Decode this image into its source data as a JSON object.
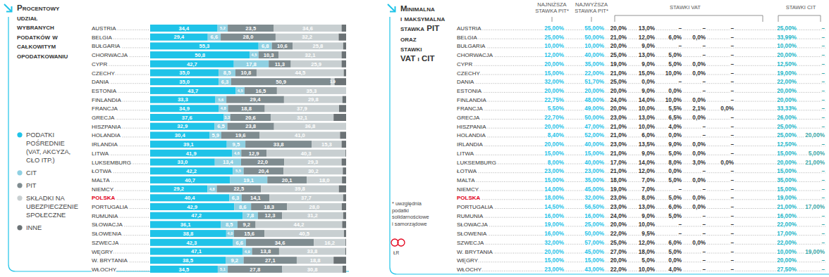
{
  "chart_data": {
    "type": "bar",
    "orientation": "horizontal",
    "stacked": true,
    "data_labels": true,
    "tick_labels": "y",
    "legend": "left",
    "grid": false,
    "title": "Procentowy udział wybranych podatków w całkowitym opodatkowaniu",
    "xlim": [
      0,
      100
    ],
    "categories": [
      "AUSTRIA",
      "BELGIA",
      "BUŁGARIA",
      "CHORWACJA",
      "CYPR",
      "CZECHY",
      "DANIA",
      "ESTONIA",
      "FINLANDIA",
      "FRANCJA",
      "GRECJA",
      "HISZPANIA",
      "HOLANDIA",
      "IRLANDIA",
      "LITWA",
      "LUKSEMBURG",
      "ŁOTWA",
      "MALTA",
      "NIEMCY",
      "POLSKA",
      "PORTUGALIA",
      "RUMUNIA",
      "SŁOWACJA",
      "SŁOWENIA",
      "SZWECJA",
      "WĘGRY",
      "W. BRYTANIA",
      "WŁOCHY"
    ],
    "series": [
      {
        "name": "PODATKI POŚREDNIE (VAT, AKCYZA, CŁO ITP.)",
        "color": "#1fc3e8",
        "values": [
          34.4,
          29.4,
          55.3,
          50.8,
          42.7,
          35.0,
          35.0,
          43.7,
          33.3,
          34.9,
          37.6,
          32.9,
          30.4,
          39.1,
          41.9,
          33.0,
          42.2,
          40.7,
          29.2,
          40.4,
          42.9,
          47.2,
          36.1,
          38.8,
          42.3,
          47.1,
          38.5,
          34.5
        ],
        "value_labels": [
          "34,4",
          "29,4",
          "55,3",
          "50,8",
          "42,7",
          "35,0",
          "35,0",
          "43,7",
          "33,3",
          "34,9",
          "37,6",
          "32,9",
          "30,4",
          "39,1",
          "41,9",
          "33,0",
          "42,2",
          "40,7",
          "29,2",
          "40,4",
          "42,9",
          "47,2",
          "36,1",
          "38,8",
          "42,3",
          "47,1",
          "38,5",
          "34,5"
        ]
      },
      {
        "name": "CIT",
        "color": "#8fd0e2",
        "values": [
          5.2,
          6.6,
          6.8,
          4.5,
          17.8,
          8.5,
          6.3,
          4.5,
          5.6,
          4.8,
          3.3,
          6.5,
          5.9,
          9.5,
          4.6,
          13.4,
          5.5,
          19.1,
          4.8,
          6.3,
          8.6,
          7.8,
          8.5,
          4.0,
          6.6,
          4.9,
          9.2,
          5.1
        ],
        "value_labels": [
          "5,2",
          "6,6",
          "6,8",
          "4,5",
          "17,8",
          "8,5",
          "6,3",
          "4,5",
          "5,6",
          "4,8",
          "3,3",
          "6,5",
          "5,9",
          "9,5",
          "4,6",
          "13,4",
          "5,5",
          "19,1",
          "4,8",
          "6,3",
          "8,6",
          "7,8",
          "8,5",
          "4,0",
          "6,6",
          "4,9",
          "9,2",
          "5,1"
        ]
      },
      {
        "name": "PIT",
        "color": "#7f8c90",
        "values": [
          23.5,
          28.0,
          10.6,
          10.3,
          11.3,
          10.8,
          50.9,
          16.5,
          29.4,
          18.8,
          20.6,
          23.8,
          19.6,
          33.8,
          12.9,
          22.0,
          20.4,
          20.1,
          22.5,
          14.1,
          18.3,
          12.3,
          9.2,
          15.6,
          34.6,
          13.8,
          27.1,
          27.8
        ],
        "value_labels": [
          "23,5",
          "28,0",
          "10,6",
          "10,3",
          "11,3",
          "10,8",
          "50,9",
          "16,5",
          "29,4",
          "18,8",
          "20,6",
          "23,8",
          "19,6",
          "33,8",
          "12,9",
          "22,0",
          "20,4",
          "20,1",
          "22,5",
          "14,1",
          "18,3",
          "12,3",
          "9,2",
          "15,6",
          "34,6",
          "13,8",
          "27,1",
          "27,8"
        ]
      },
      {
        "name": "SKŁADKI NA UBEZPIECZENIE SPOŁECZNE",
        "color": "#c8cfd1",
        "values": [
          34.6,
          32.2,
          25.8,
          32.1,
          25.9,
          44.5,
          1.9,
          35.3,
          29.8,
          37.9,
          32.1,
          36.8,
          41.0,
          15.3,
          40.3,
          29.3,
          30.2,
          18.0,
          39.8,
          37.7,
          28.0,
          31.2,
          44.2,
          40.5,
          16.2,
          33.8,
          18.8,
          30.8
        ],
        "value_labels": [
          "34,6",
          "32,2",
          "25,8",
          "32,1",
          "25,9",
          "44,5",
          "1,9",
          "35,3",
          "29,8",
          "37,9",
          "32,1",
          "36,8",
          "41,0",
          "15,3",
          "40,3",
          "29,3",
          "30,2",
          "18,0",
          "39,8",
          "37,7",
          "28,0",
          "31,2",
          "44,2",
          "40,5",
          "16,2",
          "33,8",
          "18,8",
          "30,8"
        ]
      },
      {
        "name": "INNE",
        "color": "#6b7275",
        "values": [
          2.3,
          3.8,
          1.5,
          2.3,
          2.3,
          1.2,
          5.9,
          0,
          1.9,
          3.6,
          6.4,
          0,
          3.1,
          2.3,
          0.3,
          2.3,
          1.7,
          2.1,
          3.7,
          1.5,
          2.2,
          1.5,
          2.0,
          1.1,
          0.3,
          0.4,
          6.4,
          1.8
        ]
      }
    ]
  },
  "table": {
    "title": [
      "Minimalna",
      "i maksymalna",
      "stawka PIT",
      "oraz",
      "stawki",
      "VAT i CIT"
    ],
    "columns": [
      "NAJNIŻSZA STAWKA PIT*",
      "NAJWYŻSZA STAWKA PIT*",
      "STAWKI VAT",
      "STAWKI CIT"
    ],
    "rows": [
      {
        "country": "AUSTRIA",
        "cells": [
          "25,00%",
          "55,00%",
          "20,0%",
          "13,0%",
          "–",
          "–",
          "–",
          "25,00%",
          "–"
        ]
      },
      {
        "country": "BELGIA",
        "cells": [
          "25,00%",
          "50,00%",
          "21,0%",
          "12,0%",
          "6,0%",
          "0,0%",
          "–",
          "33,99%",
          "–"
        ]
      },
      {
        "country": "BUŁGARIA",
        "cells": [
          "10,00%",
          "10,00%",
          "20,0%",
          "9,0%",
          "–",
          "–",
          "–",
          "10,00%",
          "–"
        ]
      },
      {
        "country": "CHORWACJA",
        "cells": [
          "12,00%",
          "40,00%",
          "25,0%",
          "13,0%",
          "5,0%",
          "–",
          "–",
          "20,00%",
          "–"
        ]
      },
      {
        "country": "CYPR",
        "cells": [
          "20,00%",
          "35,00%",
          "19,0%",
          "9,0%",
          "5,0%",
          "0,0%",
          "–",
          "12,50%",
          "–"
        ]
      },
      {
        "country": "CZECHY",
        "cells": [
          "15,00%",
          "22,00%",
          "21,0%",
          "15,0%",
          "10,0%",
          "0,0%",
          "–",
          "19,00%",
          "–"
        ]
      },
      {
        "country": "DANIA",
        "cells": [
          "32,00%",
          "51,70%",
          "25,0%",
          "0,0%",
          "–",
          "–",
          "–",
          "22,00%",
          "–"
        ]
      },
      {
        "country": "ESTONIA",
        "cells": [
          "20,00%",
          "20,00%",
          "20,0%",
          "9,0%",
          "0,0%",
          "–",
          "–",
          "20,00%",
          "–"
        ]
      },
      {
        "country": "FINLANDIA",
        "cells": [
          "22,75%",
          "48,00%",
          "24,0%",
          "14,0%",
          "10,0%",
          "0,0%",
          "–",
          "20,00%",
          "–"
        ]
      },
      {
        "country": "FRANCJA",
        "cells": [
          "5,50%",
          "49,00%",
          "20,0%",
          "10,0%",
          "5,5%",
          "2,1%",
          "0,0%",
          "33,33%",
          "–"
        ]
      },
      {
        "country": "GRECJA",
        "cells": [
          "22,70%",
          "50,00%",
          "23,0%",
          "13,0%",
          "6,5%",
          "0,0%",
          "–",
          "26,00%",
          "–"
        ]
      },
      {
        "country": "HISZPANIA",
        "cells": [
          "20,00%",
          "47,00%",
          "21,0%",
          "10,0%",
          "4,0%",
          "–",
          "–",
          "25,00%",
          "–"
        ]
      },
      {
        "country": "HOLANDIA",
        "cells": [
          "8,40%",
          "52,00%",
          "21,0%",
          "6,0%",
          "0,0%",
          "–",
          "–",
          "25,00%",
          "20,00%"
        ]
      },
      {
        "country": "IRLANDIA",
        "cells": [
          "20,00%",
          "40,00%",
          "23,0%",
          "13,5%",
          "9,0%",
          "0,0%",
          "–",
          "12,50%",
          "–"
        ]
      },
      {
        "country": "LITWA",
        "cells": [
          "15,00%",
          "15,00%",
          "21,0%",
          "9,0%",
          "5,0%",
          "0,0%",
          "–",
          "15,00%",
          "5,00%"
        ]
      },
      {
        "country": "LUKSEMBURG",
        "cells": [
          "8,00%",
          "40,00%",
          "17,0%",
          "14,0%",
          "8,0%",
          "3,0%",
          "0,0%",
          "20,00%",
          "21,00%"
        ]
      },
      {
        "country": "ŁOTWA",
        "cells": [
          "23,00%",
          "23,00%",
          "21,0%",
          "12,0%",
          "0,0%",
          "–",
          "–",
          "15,00%",
          "–"
        ]
      },
      {
        "country": "MALTA",
        "cells": [
          "15,00%",
          "35,00%",
          "18,0%",
          "7,0%",
          "5,0%",
          "0,0%",
          "–",
          "35,00%",
          "–"
        ]
      },
      {
        "country": "NIEMCY",
        "cells": [
          "14,00%",
          "45,00%",
          "19,0%",
          "7,0%",
          "–",
          "–",
          "–",
          "15,00%",
          "–"
        ]
      },
      {
        "country": "POLSKA",
        "color": "#e2001a",
        "cells": [
          "18,00%",
          "32,00%",
          "23,0%",
          "8,0%",
          "5,0%",
          "0,0%",
          "–",
          "19,00%",
          "–"
        ]
      },
      {
        "country": "PORTUGALIA",
        "cells": [
          "14,50%",
          "56,50%",
          "23,0%",
          "13,0%",
          "6,0%",
          "0,0%",
          "–",
          "21,00%",
          "17,00%"
        ]
      },
      {
        "country": "RUMUNIA",
        "cells": [
          "16,00%",
          "16,00%",
          "24,0%",
          "9,0%",
          "5,0%",
          "–",
          "–",
          "16,00%",
          "–"
        ]
      },
      {
        "country": "SŁOWACJA",
        "cells": [
          "19,00%",
          "25,00%",
          "20,0%",
          "10,0%",
          "–",
          "–",
          "–",
          "22,00%",
          "–"
        ]
      },
      {
        "country": "SŁOWENIA",
        "cells": [
          "16,00%",
          "50,00%",
          "22,0%",
          "9,5%",
          "–",
          "–",
          "–",
          "17,00%",
          "–"
        ]
      },
      {
        "country": "SZWECJA",
        "cells": [
          "32,00%",
          "57,00%",
          "25,0%",
          "12,0%",
          "6,0%",
          "0,0%",
          "–",
          "22,00%",
          "–"
        ]
      },
      {
        "country": "W. BRYTANIA",
        "cells": [
          "20,00%",
          "45,00%",
          "27,0%",
          "18,0%",
          "5,0%",
          "–",
          "–",
          "10,00%",
          "19,00%"
        ]
      },
      {
        "country": "WĘGRY",
        "cells": [
          "15,00%",
          "15,00%",
          "20,0%",
          "5,0%",
          "0,0%",
          "–",
          "–",
          "20,00%",
          "–"
        ]
      },
      {
        "country": "WŁOCHY",
        "cells": [
          "23,00%",
          "43,00%",
          "22,0%",
          "10,0%",
          "4,0%",
          "–",
          "–",
          "27,50%",
          "–"
        ]
      }
    ],
    "footnote": [
      "* uwzględnia",
      "podatki",
      "solidarnościowe",
      "i samorządowe"
    ],
    "credit": "ŁR"
  }
}
